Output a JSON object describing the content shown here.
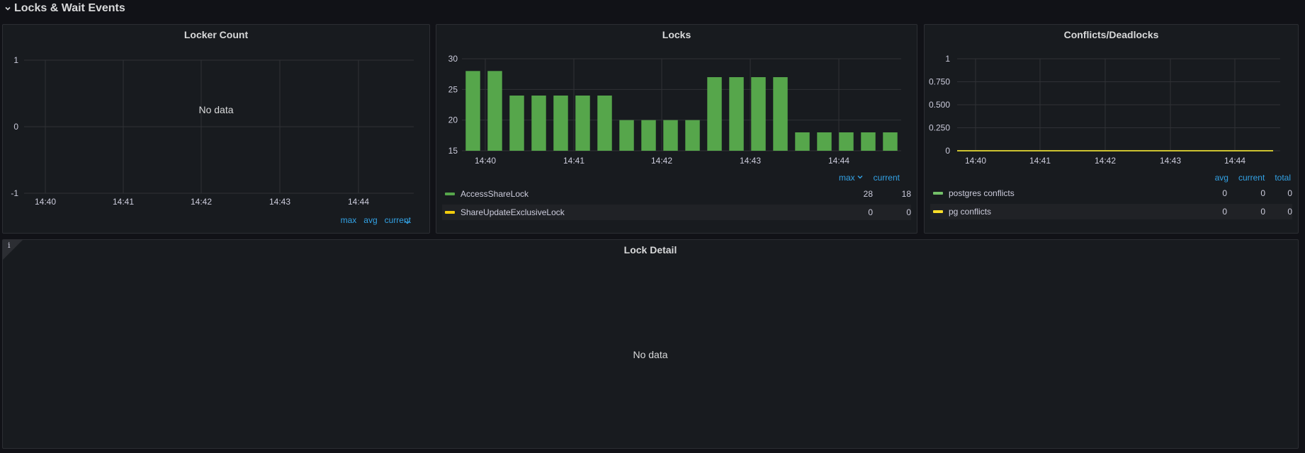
{
  "row": {
    "title": "Locks & Wait Events"
  },
  "locker_panel": {
    "title": "Locker Count",
    "no_data": "No data",
    "y_ticks": [
      "1",
      "0",
      "-1"
    ],
    "x_ticks": [
      "14:40",
      "14:41",
      "14:42",
      "14:43",
      "14:44"
    ],
    "legend_head": [
      "max",
      "avg",
      "current"
    ]
  },
  "locks_panel": {
    "title": "Locks",
    "legend_head": [
      "max",
      "current"
    ],
    "legend": [
      {
        "name": "AccessShareLock",
        "color": "#56a64b",
        "max": "28",
        "current": "18"
      },
      {
        "name": "ShareUpdateExclusiveLock",
        "color": "#f2cc0c",
        "max": "0",
        "current": "0"
      }
    ]
  },
  "conflicts_panel": {
    "title": "Conflicts/Deadlocks",
    "legend_head": [
      "avg",
      "current",
      "total"
    ],
    "legend": [
      {
        "name": "postgres conflicts",
        "color": "#73bf69",
        "avg": "0",
        "current": "0",
        "total": "0"
      },
      {
        "name": "pg conflicts",
        "color": "#fade2a",
        "avg": "0",
        "current": "0",
        "total": "0"
      }
    ]
  },
  "detail_panel": {
    "title": "Lock Detail",
    "no_data": "No data",
    "info_icon": "i"
  },
  "chart_data": [
    {
      "type": "line",
      "title": "Locker Count",
      "x_ticks": [
        "14:40",
        "14:41",
        "14:42",
        "14:43",
        "14:44"
      ],
      "y_ticks": [
        1,
        0,
        -1
      ],
      "ylim": [
        -1,
        1
      ],
      "series": [],
      "grid": true
    },
    {
      "type": "bar",
      "title": "Locks",
      "x_ticks": [
        "14:40",
        "14:41",
        "14:42",
        "14:43",
        "14:44"
      ],
      "y_ticks": [
        30,
        25,
        20,
        15
      ],
      "ylim": [
        15,
        30
      ],
      "series": [
        {
          "name": "AccessShareLock",
          "color": "#56a64b",
          "values": [
            28,
            28,
            24,
            24,
            24,
            24,
            24,
            20,
            20,
            20,
            20,
            27,
            27,
            27,
            27,
            18,
            18,
            18,
            18,
            18
          ]
        }
      ],
      "grid": true
    },
    {
      "type": "line",
      "title": "Conflicts/Deadlocks",
      "x_ticks": [
        "14:40",
        "14:41",
        "14:42",
        "14:43",
        "14:44"
      ],
      "y_ticks": [
        "1",
        "0.750",
        "0.500",
        "0.250",
        "0"
      ],
      "ylim": [
        0,
        1
      ],
      "series": [
        {
          "name": "postgres conflicts",
          "color": "#73bf69",
          "values": [
            0,
            0,
            0,
            0,
            0
          ]
        },
        {
          "name": "pg conflicts",
          "color": "#fade2a",
          "values": [
            0,
            0,
            0,
            0,
            0
          ]
        }
      ],
      "grid": true
    }
  ]
}
